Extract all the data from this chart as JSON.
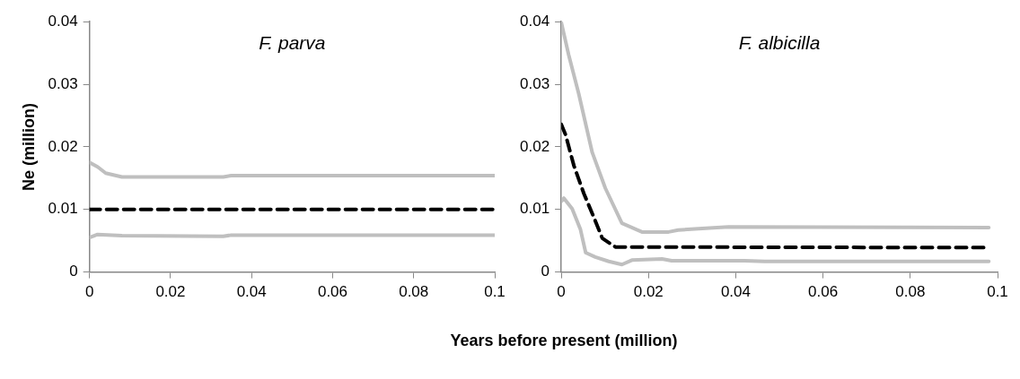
{
  "chart_data": [
    {
      "type": "line",
      "title": "F. parva",
      "ylabel": "Ne (million)",
      "xlabel": "Years before present (million)",
      "xlim": [
        0,
        0.1
      ],
      "xticks": [
        0,
        0.02,
        0.04,
        0.06,
        0.08,
        0.1
      ],
      "ylim": [
        0,
        0.04
      ],
      "yticks": [
        0,
        0.01,
        0.02,
        0.03,
        0.04
      ],
      "grid": false,
      "legend": false,
      "marker": "none",
      "series": [
        {
          "color": "#bfbfbf",
          "line_style": "solid",
          "x": [
            0,
            0.002,
            0.004,
            0.008,
            0.033,
            0.035,
            0.1
          ],
          "values": [
            0.0175,
            0.0168,
            0.0158,
            0.0152,
            0.0152,
            0.0154,
            0.0154
          ]
        },
        {
          "color": "#000000",
          "line_style": "dashed",
          "x": [
            0,
            0.1
          ],
          "values": [
            0.01,
            0.01
          ]
        },
        {
          "color": "#bfbfbf",
          "line_style": "solid",
          "x": [
            0,
            0.002,
            0.008,
            0.033,
            0.035,
            0.1
          ],
          "values": [
            0.0055,
            0.006,
            0.0058,
            0.0057,
            0.0059,
            0.0059
          ]
        }
      ]
    },
    {
      "type": "line",
      "title": "F. albicilla",
      "xlim": [
        0,
        0.1
      ],
      "xticks": [
        0,
        0.02,
        0.04,
        0.06,
        0.08,
        0.1
      ],
      "ylim": [
        0,
        0.04
      ],
      "yticks": [
        0,
        0.01,
        0.02,
        0.03,
        0.04
      ],
      "grid": false,
      "legend": false,
      "marker": "none",
      "series": [
        {
          "color": "#bfbfbf",
          "line_style": "solid",
          "x": [
            0,
            0.0017,
            0.004,
            0.0071,
            0.0101,
            0.0139,
            0.0185,
            0.0246,
            0.0268,
            0.0306,
            0.0383,
            0.098
          ],
          "values": [
            0.0399,
            0.0347,
            0.0285,
            0.0191,
            0.0134,
            0.0078,
            0.0064,
            0.0064,
            0.0067,
            0.0069,
            0.0072,
            0.0071
          ]
        },
        {
          "color": "#000000",
          "line_style": "dashed",
          "x": [
            0,
            0.001,
            0.0029,
            0.0052,
            0.0075,
            0.0094,
            0.0124,
            0.098
          ],
          "values": [
            0.0236,
            0.0219,
            0.017,
            0.0125,
            0.0087,
            0.0054,
            0.004,
            0.0039
          ]
        },
        {
          "color": "#bfbfbf",
          "line_style": "solid",
          "x": [
            0,
            0.0006,
            0.0025,
            0.0044,
            0.0056,
            0.0078,
            0.0109,
            0.0139,
            0.0162,
            0.0231,
            0.0253,
            0.042,
            0.0466,
            0.098
          ],
          "values": [
            0.0113,
            0.0118,
            0.0101,
            0.0068,
            0.0031,
            0.0024,
            0.0017,
            0.0012,
            0.0019,
            0.0021,
            0.0018,
            0.0018,
            0.0017,
            0.0017
          ]
        }
      ]
    }
  ]
}
